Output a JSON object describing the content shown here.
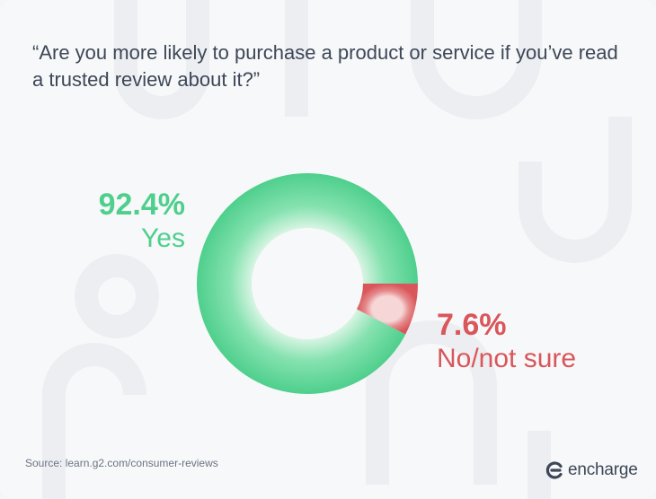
{
  "title": "“Are you more likely to purchase a product or service if you’ve read a trusted review about it?”",
  "chart_data": {
    "type": "pie",
    "style": "donut",
    "slices": [
      {
        "name": "Yes",
        "value": 92.4,
        "label": "92.4%",
        "color": "#4ecf8c"
      },
      {
        "name": "No/not sure",
        "value": 7.6,
        "label": "7.6%",
        "color": "#d9565a"
      }
    ]
  },
  "source": "Source: learn.g2.com/consumer-reviews",
  "brand": {
    "name": "encharge",
    "icon": "encharge-logo-icon"
  },
  "colors": {
    "yes": "#4ecf8c",
    "no": "#d9565a",
    "text": "#3d4756",
    "background": "#f7f8fa"
  }
}
